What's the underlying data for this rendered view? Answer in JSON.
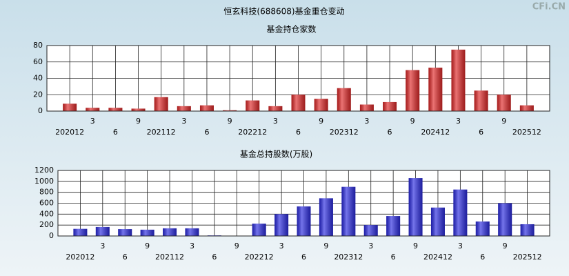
{
  "title": "恒玄科技(688608)基金重仓变动",
  "watermark": "CFi.CN",
  "chart_data": [
    {
      "type": "bar",
      "title": "基金持仓家数",
      "categories": [
        "202012",
        "3",
        "6",
        "9",
        "202112",
        "3",
        "6",
        "9",
        "202212",
        "3",
        "6",
        "9",
        "202312",
        "3",
        "6",
        "9",
        "202412",
        "3",
        "6",
        "9",
        "202512"
      ],
      "values": [
        9,
        4,
        4,
        3,
        17,
        6,
        7,
        1,
        13,
        6,
        20,
        15,
        28,
        8,
        11,
        50,
        53,
        75,
        25,
        20,
        7
      ],
      "color": "#e02828",
      "ylim": [
        0,
        80
      ],
      "yticks": [
        0,
        20,
        40,
        60,
        80
      ],
      "grid": true
    },
    {
      "type": "bar",
      "title": "基金总持股数(万股)",
      "categories": [
        "202012",
        "3",
        "6",
        "9",
        "202112",
        "3",
        "6",
        "9",
        "202212",
        "3",
        "6",
        "9",
        "202312",
        "3",
        "6",
        "9",
        "202412",
        "3",
        "6",
        "9",
        "202512"
      ],
      "values": [
        130,
        165,
        125,
        115,
        140,
        140,
        10,
        5,
        225,
        400,
        540,
        690,
        900,
        200,
        365,
        1060,
        520,
        850,
        265,
        600,
        215
      ],
      "color": "#2a2ae0",
      "ylim": [
        0,
        1200
      ],
      "yticks": [
        0,
        200,
        400,
        600,
        800,
        1000,
        1200
      ],
      "grid": true
    }
  ]
}
